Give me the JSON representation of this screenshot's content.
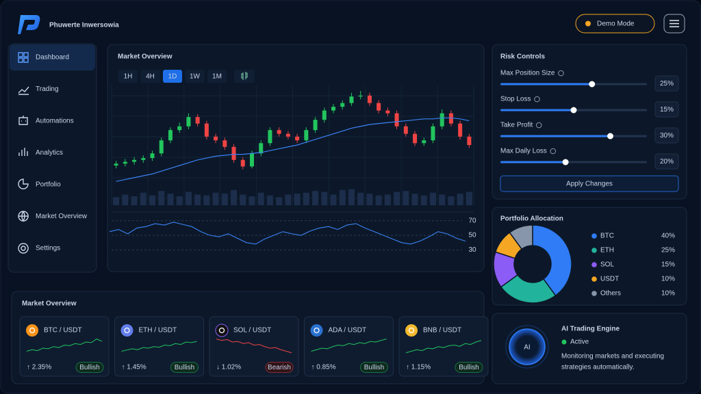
{
  "header": {
    "brand": "Phuwerte Inwersowia",
    "mode": "Demo Mode"
  },
  "nav": {
    "items": [
      "Dashboard",
      "Trading",
      "Automations",
      "Analytics",
      "Portfolio",
      "Market Overview",
      "Settings"
    ],
    "active": 0
  },
  "chart_data": [
    {
      "type": "candlestick",
      "title": "Market Overview",
      "timeframes": [
        "1H",
        "4H",
        "1D",
        "1W",
        "1M"
      ],
      "active_timeframe": 2,
      "ylim": [
        -10,
        100
      ],
      "candles": [
        [
          12,
          17,
          9,
          14
        ],
        [
          14,
          19,
          11,
          16
        ],
        [
          16,
          21,
          13,
          18
        ],
        [
          18,
          23,
          15,
          20
        ],
        [
          20,
          28,
          17,
          25
        ],
        [
          25,
          42,
          22,
          39
        ],
        [
          39,
          53,
          36,
          50
        ],
        [
          50,
          58,
          47,
          54
        ],
        [
          54,
          68,
          51,
          64
        ],
        [
          64,
          67,
          54,
          57
        ],
        [
          57,
          60,
          40,
          43
        ],
        [
          43,
          46,
          36,
          39
        ],
        [
          39,
          42,
          29,
          32
        ],
        [
          32,
          35,
          15,
          18
        ],
        [
          18,
          21,
          8,
          11
        ],
        [
          11,
          28,
          9,
          25
        ],
        [
          25,
          39,
          22,
          36
        ],
        [
          36,
          53,
          33,
          50
        ],
        [
          50,
          53,
          43,
          46
        ],
        [
          46,
          49,
          40,
          43
        ],
        [
          43,
          46,
          36,
          39
        ],
        [
          39,
          53,
          36,
          50
        ],
        [
          50,
          64,
          47,
          61
        ],
        [
          61,
          74,
          58,
          71
        ],
        [
          71,
          78,
          68,
          75
        ],
        [
          75,
          82,
          72,
          79
        ],
        [
          79,
          90,
          76,
          86
        ],
        [
          86,
          92,
          83,
          87
        ],
        [
          87,
          90,
          76,
          79
        ],
        [
          79,
          82,
          68,
          71
        ],
        [
          71,
          74,
          65,
          68
        ],
        [
          68,
          71,
          51,
          54
        ],
        [
          54,
          57,
          43,
          46
        ],
        [
          46,
          49,
          33,
          36
        ],
        [
          36,
          42,
          33,
          39
        ],
        [
          39,
          57,
          36,
          54
        ],
        [
          54,
          72,
          51,
          68
        ],
        [
          68,
          71,
          54,
          57
        ],
        [
          57,
          60,
          40,
          43
        ],
        [
          43,
          46,
          31,
          34
        ]
      ],
      "ma": [
        -5,
        -3,
        -1,
        1,
        3,
        6,
        9,
        12,
        15,
        18,
        20,
        22,
        23,
        24,
        24,
        25,
        26,
        28,
        30,
        32,
        34,
        37,
        40,
        43,
        46,
        49,
        52,
        54,
        56,
        57,
        58,
        59,
        60,
        61,
        62,
        62,
        63,
        63,
        62,
        60
      ],
      "volume": [
        45,
        60,
        50,
        70,
        55,
        80,
        65,
        50,
        75,
        60,
        55,
        70,
        65,
        85,
        60,
        50,
        70,
        55,
        45,
        60,
        65,
        70,
        80,
        75,
        60,
        85,
        90,
        70,
        65,
        55,
        60,
        75,
        80,
        65,
        55,
        70,
        60,
        50,
        65,
        75
      ],
      "volume_lim": [
        0,
        100
      ],
      "rsi": [
        55,
        58,
        52,
        60,
        62,
        66,
        64,
        68,
        65,
        62,
        55,
        50,
        48,
        52,
        46,
        40,
        38,
        45,
        50,
        55,
        52,
        50,
        56,
        60,
        62,
        58,
        64,
        66,
        60,
        55,
        50,
        45,
        40,
        38,
        42,
        48,
        55,
        52,
        46,
        42
      ],
      "rsi_lim": [
        20,
        80
      ],
      "rsi_ticks": [
        70,
        50,
        30
      ],
      "up_color": "#22c55e",
      "down_color": "#ef4444",
      "ma_color": "#3b82f6",
      "rsi_color": "#3b82f6"
    },
    {
      "type": "pie",
      "title": "Portfolio Allocation",
      "categories": [
        "BTC",
        "ETH",
        "SOL",
        "USDT",
        "Others"
      ],
      "values": [
        40,
        25,
        15,
        10,
        10
      ],
      "value_labels": [
        "40%",
        "25%",
        "15%",
        "10%",
        "10%"
      ],
      "colors": [
        "#2f7cf6",
        "#22b39c",
        "#8b5cf6",
        "#f5a623",
        "#8796ab"
      ]
    }
  ],
  "risk_controls": {
    "title": "Risk Controls",
    "sliders": [
      {
        "label": "Max Position Size",
        "value": 25,
        "value_label": "25%",
        "max": 40
      },
      {
        "label": "Stop Loss",
        "value": 15,
        "value_label": "15%",
        "max": 30
      },
      {
        "label": "Take Profit",
        "value": 30,
        "value_label": "30%",
        "max": 40
      },
      {
        "label": "Max Daily Loss",
        "value": 20,
        "value_label": "20%",
        "max": 45
      }
    ],
    "button": "Apply Changes"
  },
  "ai_engine": {
    "badge": "AI",
    "title": "AI Trading Engine",
    "status": "Active",
    "description_lines": [
      "Monitoring markets and executing",
      "strategies automatically."
    ]
  },
  "market": {
    "title": "Market Overview",
    "spark_lim": [
      0,
      100
    ],
    "up_color": "#22c55e",
    "down_color": "#ef4444",
    "cards": [
      {
        "pair": "BTC / USDT",
        "change": 2.35,
        "change_label": "↑ 2.35%",
        "sentiment": "Bullish",
        "icon_color": "#f7931a",
        "spark": [
          30,
          35,
          32,
          40,
          38,
          45,
          42,
          50,
          48,
          55,
          52,
          60,
          58,
          70,
          62
        ]
      },
      {
        "pair": "ETH / USDT",
        "change": 1.45,
        "change_label": "↑ 1.45%",
        "sentiment": "Bullish",
        "icon_color": "#627eea",
        "spark": [
          30,
          34,
          38,
          35,
          42,
          40,
          45,
          43,
          50,
          48,
          55,
          52,
          60,
          58,
          62
        ]
      },
      {
        "pair": "SOL / USDT",
        "change": -1.02,
        "change_label": "↓ 1.02%",
        "sentiment": "Bearish",
        "icon_color": "#111111",
        "spark": [
          70,
          65,
          68,
          60,
          62,
          55,
          58,
          50,
          52,
          45,
          40,
          42,
          35,
          30,
          25
        ]
      },
      {
        "pair": "ADA / USDT",
        "change": 0.85,
        "change_label": "↑ 0.85%",
        "sentiment": "Bullish",
        "icon_color": "#2a71d0",
        "spark": [
          30,
          35,
          40,
          38,
          45,
          50,
          48,
          55,
          52,
          58,
          55,
          62,
          60,
          65,
          70
        ]
      },
      {
        "pair": "BNB / USDT",
        "change": 1.15,
        "change_label": "↑ 1.15%",
        "sentiment": "Bullish",
        "icon_color": "#f3ba2f",
        "spark": [
          25,
          30,
          35,
          32,
          40,
          38,
          45,
          42,
          48,
          50,
          46,
          55,
          52,
          60,
          65
        ]
      }
    ]
  }
}
